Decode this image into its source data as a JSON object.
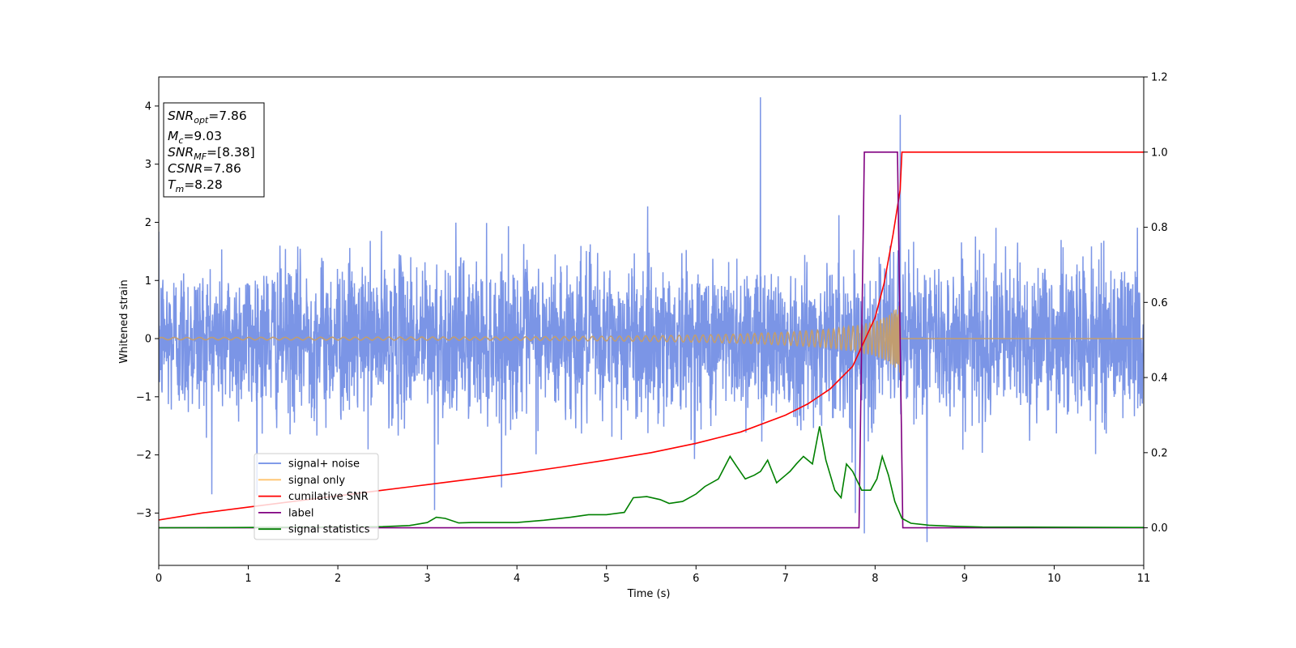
{
  "chart_data": {
    "type": "line",
    "xlabel": "Time (s)",
    "ylabel": "Whitened strain",
    "xlim": [
      0,
      11
    ],
    "ylim_left": [
      -3.9,
      4.5
    ],
    "ylim_right": [
      -0.1,
      1.2
    ],
    "x_ticks": [
      "0",
      "1",
      "2",
      "3",
      "4",
      "5",
      "6",
      "7",
      "8",
      "9",
      "10",
      "11"
    ],
    "y_ticks_left": [
      {
        "value": -3,
        "label": "−3"
      },
      {
        "value": -2,
        "label": "−2"
      },
      {
        "value": -1,
        "label": "−1"
      },
      {
        "value": 0,
        "label": "0"
      },
      {
        "value": 1,
        "label": "1"
      },
      {
        "value": 2,
        "label": "2"
      },
      {
        "value": 3,
        "label": "3"
      },
      {
        "value": 4,
        "label": "4"
      }
    ],
    "y_ticks_right": [
      {
        "value": 0.0,
        "label": "0.0"
      },
      {
        "value": 0.2,
        "label": "0.2"
      },
      {
        "value": 0.4,
        "label": "0.4"
      },
      {
        "value": 0.6,
        "label": "0.6"
      },
      {
        "value": 0.8,
        "label": "0.8"
      },
      {
        "value": 1.0,
        "label": "1.0"
      },
      {
        "value": 1.2,
        "label": "1.2"
      }
    ],
    "annotation": {
      "lines": [
        {
          "main": "SNR",
          "sub": "opt",
          "rest": "=7.86"
        },
        {
          "main": "M",
          "sub": "c",
          "rest": "=9.03"
        },
        {
          "main": "SNR",
          "sub": "MF",
          "rest": "=[8.38]"
        },
        {
          "main": "CSNR",
          "sub": "",
          "rest": "=7.86"
        },
        {
          "main": "T",
          "sub": "m",
          "rest": "=8.28"
        }
      ]
    },
    "legend": {
      "placement": "lower-left",
      "entries": [
        {
          "label": "signal+ noise",
          "color": "#6f8de6"
        },
        {
          "label": "signal only",
          "color": "#ffc36e"
        },
        {
          "label": "cumilative SNR",
          "color": "#ff0000"
        },
        {
          "label": "label",
          "color": "#800080"
        },
        {
          "label": "signal statistics",
          "color": "#008000"
        }
      ]
    },
    "series": [
      {
        "name": "signal+ noise",
        "axis": "left",
        "color": "#7b95e6",
        "style": "noise",
        "amplitude_std": 0.85,
        "spikes": [
          [
            6.72,
            4.15
          ],
          [
            8.28,
            3.85
          ],
          [
            8.58,
            -3.5
          ],
          [
            7.88,
            -3.35
          ],
          [
            7.78,
            -3.0
          ],
          [
            3.08,
            -2.95
          ]
        ]
      },
      {
        "name": "signal only",
        "axis": "left",
        "color": "#c19d70",
        "style": "chirp",
        "t_end": 8.28,
        "envelope": [
          [
            0,
            0.02
          ],
          [
            2,
            0.025
          ],
          [
            4,
            0.03
          ],
          [
            5,
            0.04
          ],
          [
            6,
            0.06
          ],
          [
            6.5,
            0.08
          ],
          [
            7,
            0.11
          ],
          [
            7.5,
            0.16
          ],
          [
            7.8,
            0.23
          ],
          [
            8.0,
            0.3
          ],
          [
            8.15,
            0.4
          ],
          [
            8.28,
            0.6
          ]
        ]
      },
      {
        "name": "cumilative SNR",
        "axis": "right",
        "color": "#ff0000",
        "x": [
          0,
          0.5,
          1,
          1.5,
          2,
          2.5,
          3,
          3.5,
          4,
          4.5,
          5,
          5.5,
          6,
          6.5,
          7,
          7.25,
          7.5,
          7.75,
          8,
          8.1,
          8.2,
          8.28,
          8.3,
          11
        ],
        "y": [
          0.021,
          0.04,
          0.055,
          0.07,
          0.085,
          0.1,
          0.115,
          0.13,
          0.145,
          0.162,
          0.18,
          0.2,
          0.225,
          0.255,
          0.3,
          0.33,
          0.37,
          0.43,
          0.56,
          0.65,
          0.78,
          0.9,
          1.0,
          1.0
        ]
      },
      {
        "name": "label",
        "axis": "right",
        "color": "#800080",
        "x": [
          0,
          7.82,
          7.88,
          8.25,
          8.31,
          11
        ],
        "y": [
          0,
          0,
          1,
          1,
          0,
          0
        ]
      },
      {
        "name": "signal statistics",
        "axis": "right",
        "color": "#008000",
        "x": [
          0,
          1,
          2,
          2.5,
          2.8,
          3.0,
          3.1,
          3.2,
          3.35,
          3.5,
          4.0,
          4.3,
          4.6,
          4.8,
          5.0,
          5.2,
          5.3,
          5.45,
          5.6,
          5.7,
          5.85,
          6.0,
          6.1,
          6.25,
          6.38,
          6.45,
          6.55,
          6.65,
          6.72,
          6.8,
          6.9,
          7.0,
          7.05,
          7.12,
          7.2,
          7.3,
          7.38,
          7.45,
          7.55,
          7.62,
          7.68,
          7.75,
          7.85,
          7.95,
          8.02,
          8.08,
          8.15,
          8.22,
          8.3,
          8.4,
          8.6,
          8.9,
          9.2,
          11
        ],
        "y": [
          0.0,
          0.001,
          0.002,
          0.003,
          0.006,
          0.014,
          0.028,
          0.025,
          0.013,
          0.014,
          0.014,
          0.02,
          0.028,
          0.035,
          0.035,
          0.041,
          0.08,
          0.083,
          0.075,
          0.065,
          0.07,
          0.09,
          0.11,
          0.13,
          0.19,
          0.165,
          0.13,
          0.14,
          0.15,
          0.18,
          0.12,
          0.14,
          0.15,
          0.17,
          0.19,
          0.17,
          0.27,
          0.18,
          0.1,
          0.08,
          0.17,
          0.15,
          0.1,
          0.1,
          0.13,
          0.19,
          0.14,
          0.07,
          0.025,
          0.012,
          0.007,
          0.004,
          0.002,
          0.001
        ]
      }
    ]
  }
}
